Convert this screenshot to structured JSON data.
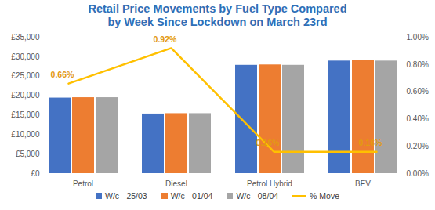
{
  "chart_data": {
    "type": "bar",
    "title": "Retail Price Movements by Fuel Type Compared by Week Since Lockdown on March 23rd",
    "categories": [
      "Petrol",
      "Diesel",
      "Petrol Hybrid",
      "BEV"
    ],
    "series": [
      {
        "name": "W/c - 25/03",
        "color": "#4472c4",
        "values": [
          19400,
          15300,
          27800,
          28900
        ]
      },
      {
        "name": "W/c - 01/04",
        "color": "#ed7d31",
        "values": [
          19500,
          15400,
          27900,
          29000
        ]
      },
      {
        "name": "W/c - 08/04",
        "color": "#a5a5a5",
        "values": [
          19500,
          15400,
          27800,
          28900
        ]
      },
      {
        "name": "% Move",
        "type": "line",
        "axis": "y2",
        "color": "#ffc000",
        "marker": "none",
        "values": [
          0.66,
          0.92,
          0.16,
          0.16
        ],
        "value_labels": [
          "0.66%",
          "0.92%",
          "0.16%",
          "0.16%"
        ]
      }
    ],
    "ylim": [
      0,
      35000
    ],
    "yticks": [
      {
        "value": 0,
        "label": "£0"
      },
      {
        "value": 5000,
        "label": "£5,000"
      },
      {
        "value": 10000,
        "label": "£10,000"
      },
      {
        "value": 15000,
        "label": "£15,000"
      },
      {
        "value": 20000,
        "label": "£20,000"
      },
      {
        "value": 25000,
        "label": "£25,000"
      },
      {
        "value": 30000,
        "label": "£30,000"
      },
      {
        "value": 35000,
        "label": "£35,000"
      }
    ],
    "y2lim": [
      0,
      1
    ],
    "y2ticks": [
      {
        "value": 0,
        "label": "0.00%"
      },
      {
        "value": 0.2,
        "label": "0.20%"
      },
      {
        "value": 0.4,
        "label": "0.40%"
      },
      {
        "value": 0.6,
        "label": "0.60%"
      },
      {
        "value": 0.8,
        "label": "0.80%"
      },
      {
        "value": 1,
        "label": "1.00%"
      }
    ],
    "grid": false,
    "data_labels": true,
    "legend": "bottom"
  }
}
